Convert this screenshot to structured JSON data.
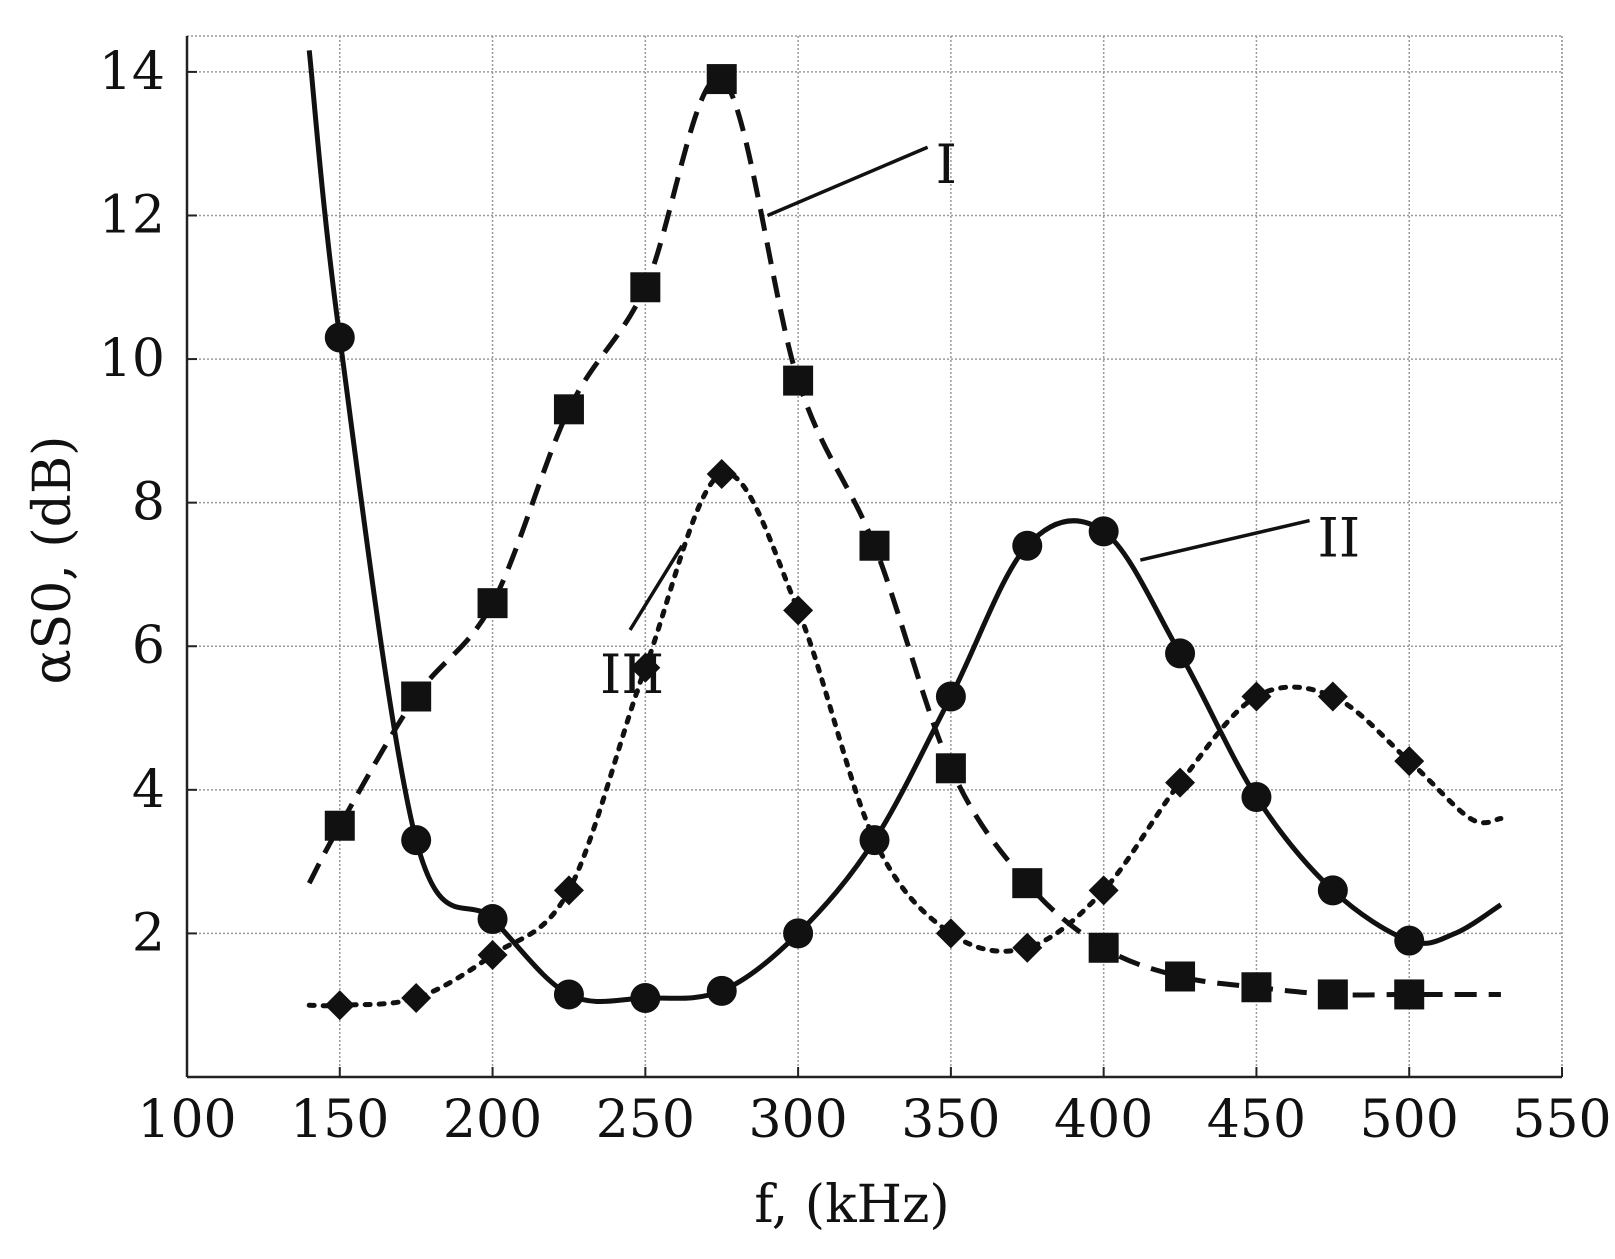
{
  "chart_data": {
    "type": "line",
    "xlabel": "f, (kHz)",
    "ylabel": "αS0, (dB)",
    "xlim": [
      100,
      550
    ],
    "ylim": [
      0,
      14.5
    ],
    "xticks": [
      100,
      150,
      200,
      250,
      300,
      350,
      400,
      450,
      500,
      550
    ],
    "yticks": [
      2,
      4,
      6,
      8,
      10,
      12,
      14
    ],
    "grid": true,
    "series": [
      {
        "name": "I",
        "line_style": "dashed",
        "marker": "square",
        "x": [
          140,
          150,
          175,
          200,
          225,
          250,
          275,
          300,
          325,
          350,
          375,
          400,
          425,
          450,
          475,
          500,
          530
        ],
        "values": [
          2.7,
          3.5,
          5.3,
          6.6,
          9.3,
          11.0,
          13.9,
          9.7,
          7.4,
          4.3,
          2.7,
          1.8,
          1.4,
          1.25,
          1.15,
          1.15,
          1.15
        ],
        "marker_x": [
          150,
          175,
          200,
          225,
          250,
          275,
          300,
          325,
          350,
          375,
          400,
          425,
          450,
          475,
          500
        ],
        "marker_values": [
          3.5,
          5.3,
          6.6,
          9.3,
          11.0,
          13.9,
          9.7,
          7.4,
          4.3,
          2.7,
          1.8,
          1.4,
          1.25,
          1.15,
          1.15
        ]
      },
      {
        "name": "II",
        "line_style": "solid",
        "marker": "circle",
        "x": [
          140,
          150,
          175,
          200,
          225,
          250,
          275,
          300,
          325,
          350,
          375,
          400,
          425,
          450,
          475,
          500,
          515,
          530
        ],
        "values": [
          14.3,
          10.3,
          3.3,
          2.2,
          1.15,
          1.1,
          1.2,
          2.0,
          3.3,
          5.3,
          7.4,
          7.6,
          5.9,
          3.9,
          2.6,
          1.9,
          2.0,
          2.4
        ],
        "marker_x": [
          150,
          175,
          200,
          225,
          250,
          275,
          300,
          325,
          350,
          375,
          400,
          425,
          450,
          475,
          500
        ],
        "marker_values": [
          10.3,
          3.3,
          2.2,
          1.15,
          1.1,
          1.2,
          2.0,
          3.3,
          5.3,
          7.4,
          7.6,
          5.9,
          3.9,
          2.6,
          1.9
        ]
      },
      {
        "name": "III",
        "line_style": "dotted",
        "marker": "diamond",
        "x": [
          140,
          150,
          175,
          200,
          225,
          250,
          275,
          300,
          325,
          350,
          375,
          400,
          425,
          450,
          475,
          500,
          520,
          530
        ],
        "values": [
          1.0,
          1.0,
          1.1,
          1.7,
          2.6,
          5.7,
          8.4,
          6.5,
          3.3,
          2.0,
          1.8,
          2.6,
          4.1,
          5.3,
          5.3,
          4.4,
          3.6,
          3.6
        ],
        "marker_x": [
          150,
          175,
          200,
          225,
          250,
          275,
          300,
          350,
          375,
          400,
          425,
          450,
          475,
          500
        ],
        "marker_values": [
          1.0,
          1.1,
          1.7,
          2.6,
          5.7,
          8.4,
          6.5,
          2.0,
          1.8,
          2.6,
          4.1,
          5.3,
          5.3,
          4.4
        ]
      }
    ],
    "annotations": [
      {
        "text": "I",
        "points_to": [
          290,
          12.0
        ],
        "text_at": [
          345,
          12.7
        ]
      },
      {
        "text": "II",
        "points_to": [
          412,
          7.2
        ],
        "text_at": [
          470,
          7.5
        ]
      },
      {
        "text": "III",
        "points_to": [
          262,
          7.4
        ],
        "text_at": [
          245,
          5.6
        ]
      }
    ]
  }
}
